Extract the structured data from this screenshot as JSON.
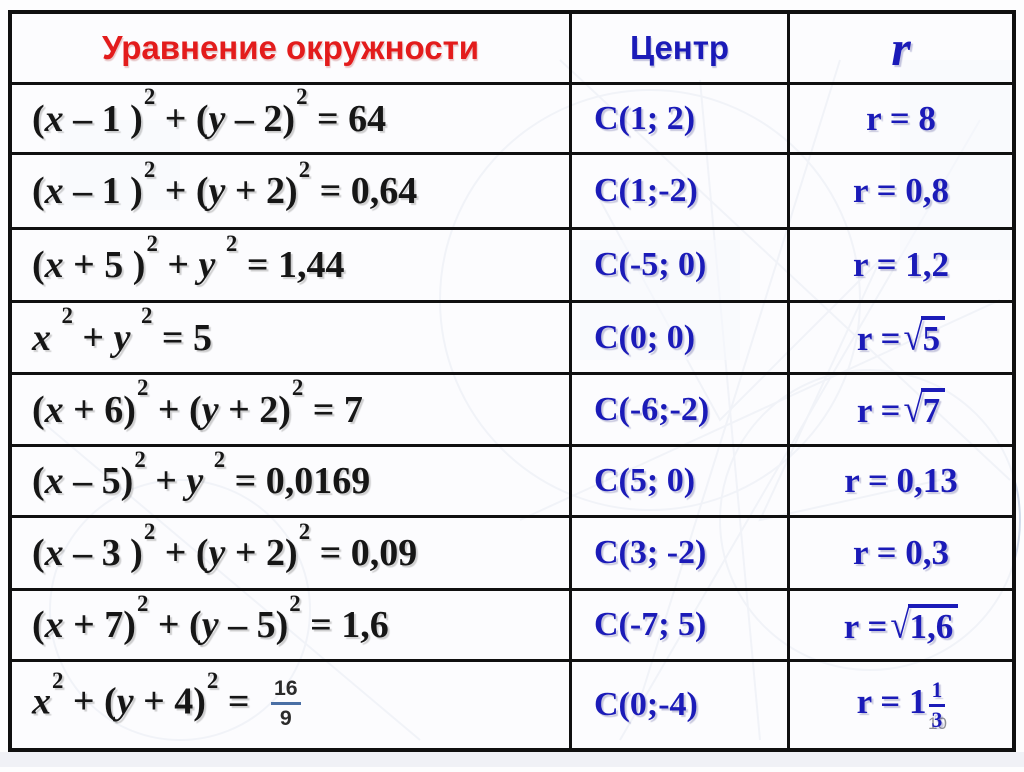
{
  "page": {
    "number": "10"
  },
  "colors": {
    "header_red": "#e31c1c",
    "text_blue": "#1b1bb8",
    "equation_black": "#161616"
  },
  "table": {
    "headers": {
      "equation": "Уравнение окружности",
      "center": "Центр",
      "radius": "r"
    },
    "rows": [
      {
        "eq": "(*x* – 1 )^2^ + (*y* – 2)^2^ = 64",
        "center": "C(1; 2)",
        "r": "r = 8"
      },
      {
        "eq": "(*x* – 1 )^2^ + (*y* + 2)^2^ = 0,64",
        "center": "C(1;-2)",
        "r": "r = 0,8"
      },
      {
        "eq": "(*x* + 5 )^2^ + *y* ^2^ = 1,44",
        "center": "C(-5; 0)",
        "r": "r = 1,2"
      },
      {
        "eq": "*x* ^2^ + *y* ^2^ = 5",
        "center": "C(0; 0)",
        "r": "r =√[5]"
      },
      {
        "eq": "(*x* + 6)^2^ + (*y* + 2)^2^ = 7",
        "center": "C(-6;-2)",
        "r": "r =√[7]"
      },
      {
        "eq": "(*x* – 5)^2^ + *y* ^2^ = 0,0169",
        "center": "C(5; 0)",
        "r": "r = 0,13"
      },
      {
        "eq": "(*x* – 3 )^2^ + (*y* + 2)^2^ = 0,09",
        "center": "C(3; -2)",
        "r": "r = 0,3"
      },
      {
        "eq": "(*x* + 7)^2^ + (*y* – 5)^2^ = 1,6",
        "center": "C(-7; 5)",
        "r": "r =√[1,6]"
      },
      {
        "eq": "*x*^2^ + (*y* + 4)^2^ = {16/9}",
        "center": "C(0;-4)",
        "r": "r = 1{1/3}"
      }
    ]
  }
}
